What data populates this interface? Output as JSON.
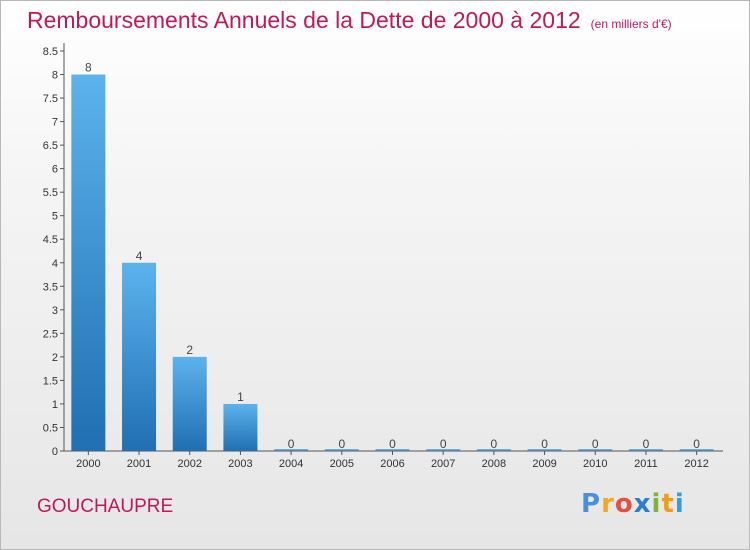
{
  "title": "Remboursements Annuels de la Dette de 2000 à 2012",
  "unit": "(en milliers d'€)",
  "commune": "GOUCHAUPRE",
  "logo": {
    "letters": [
      "P",
      "r",
      "o",
      "x",
      "i",
      "t",
      "i"
    ],
    "colors": [
      "#4a90d9",
      "#f5a623",
      "#e2513f",
      "#2a7dd1",
      "#7cb342",
      "#f39c12",
      "#3a9bd5"
    ]
  },
  "colors": {
    "title": "#c2185b",
    "bar_light": "#5cb3ec",
    "bar_dark": "#1f6fb2"
  },
  "chart_data": {
    "type": "bar",
    "categories": [
      "2000",
      "2001",
      "2002",
      "2003",
      "2004",
      "2005",
      "2006",
      "2007",
      "2008",
      "2009",
      "2010",
      "2011",
      "2012"
    ],
    "values": [
      8,
      4,
      2,
      1,
      0,
      0,
      0,
      0,
      0,
      0,
      0,
      0,
      0
    ],
    "data_labels": [
      "8",
      "4",
      "2",
      "1",
      "0",
      "0",
      "0",
      "0",
      "0",
      "0",
      "0",
      "0",
      "0"
    ],
    "yticks": [
      "0",
      "0.5",
      "1",
      "1.5",
      "2",
      "2.5",
      "3",
      "3.5",
      "4",
      "4.5",
      "5",
      "5.5",
      "6",
      "6.5",
      "7",
      "7.5",
      "8",
      "8.5"
    ],
    "ylim": [
      0,
      8.5
    ],
    "grid": false,
    "xlabel": "",
    "ylabel": ""
  }
}
